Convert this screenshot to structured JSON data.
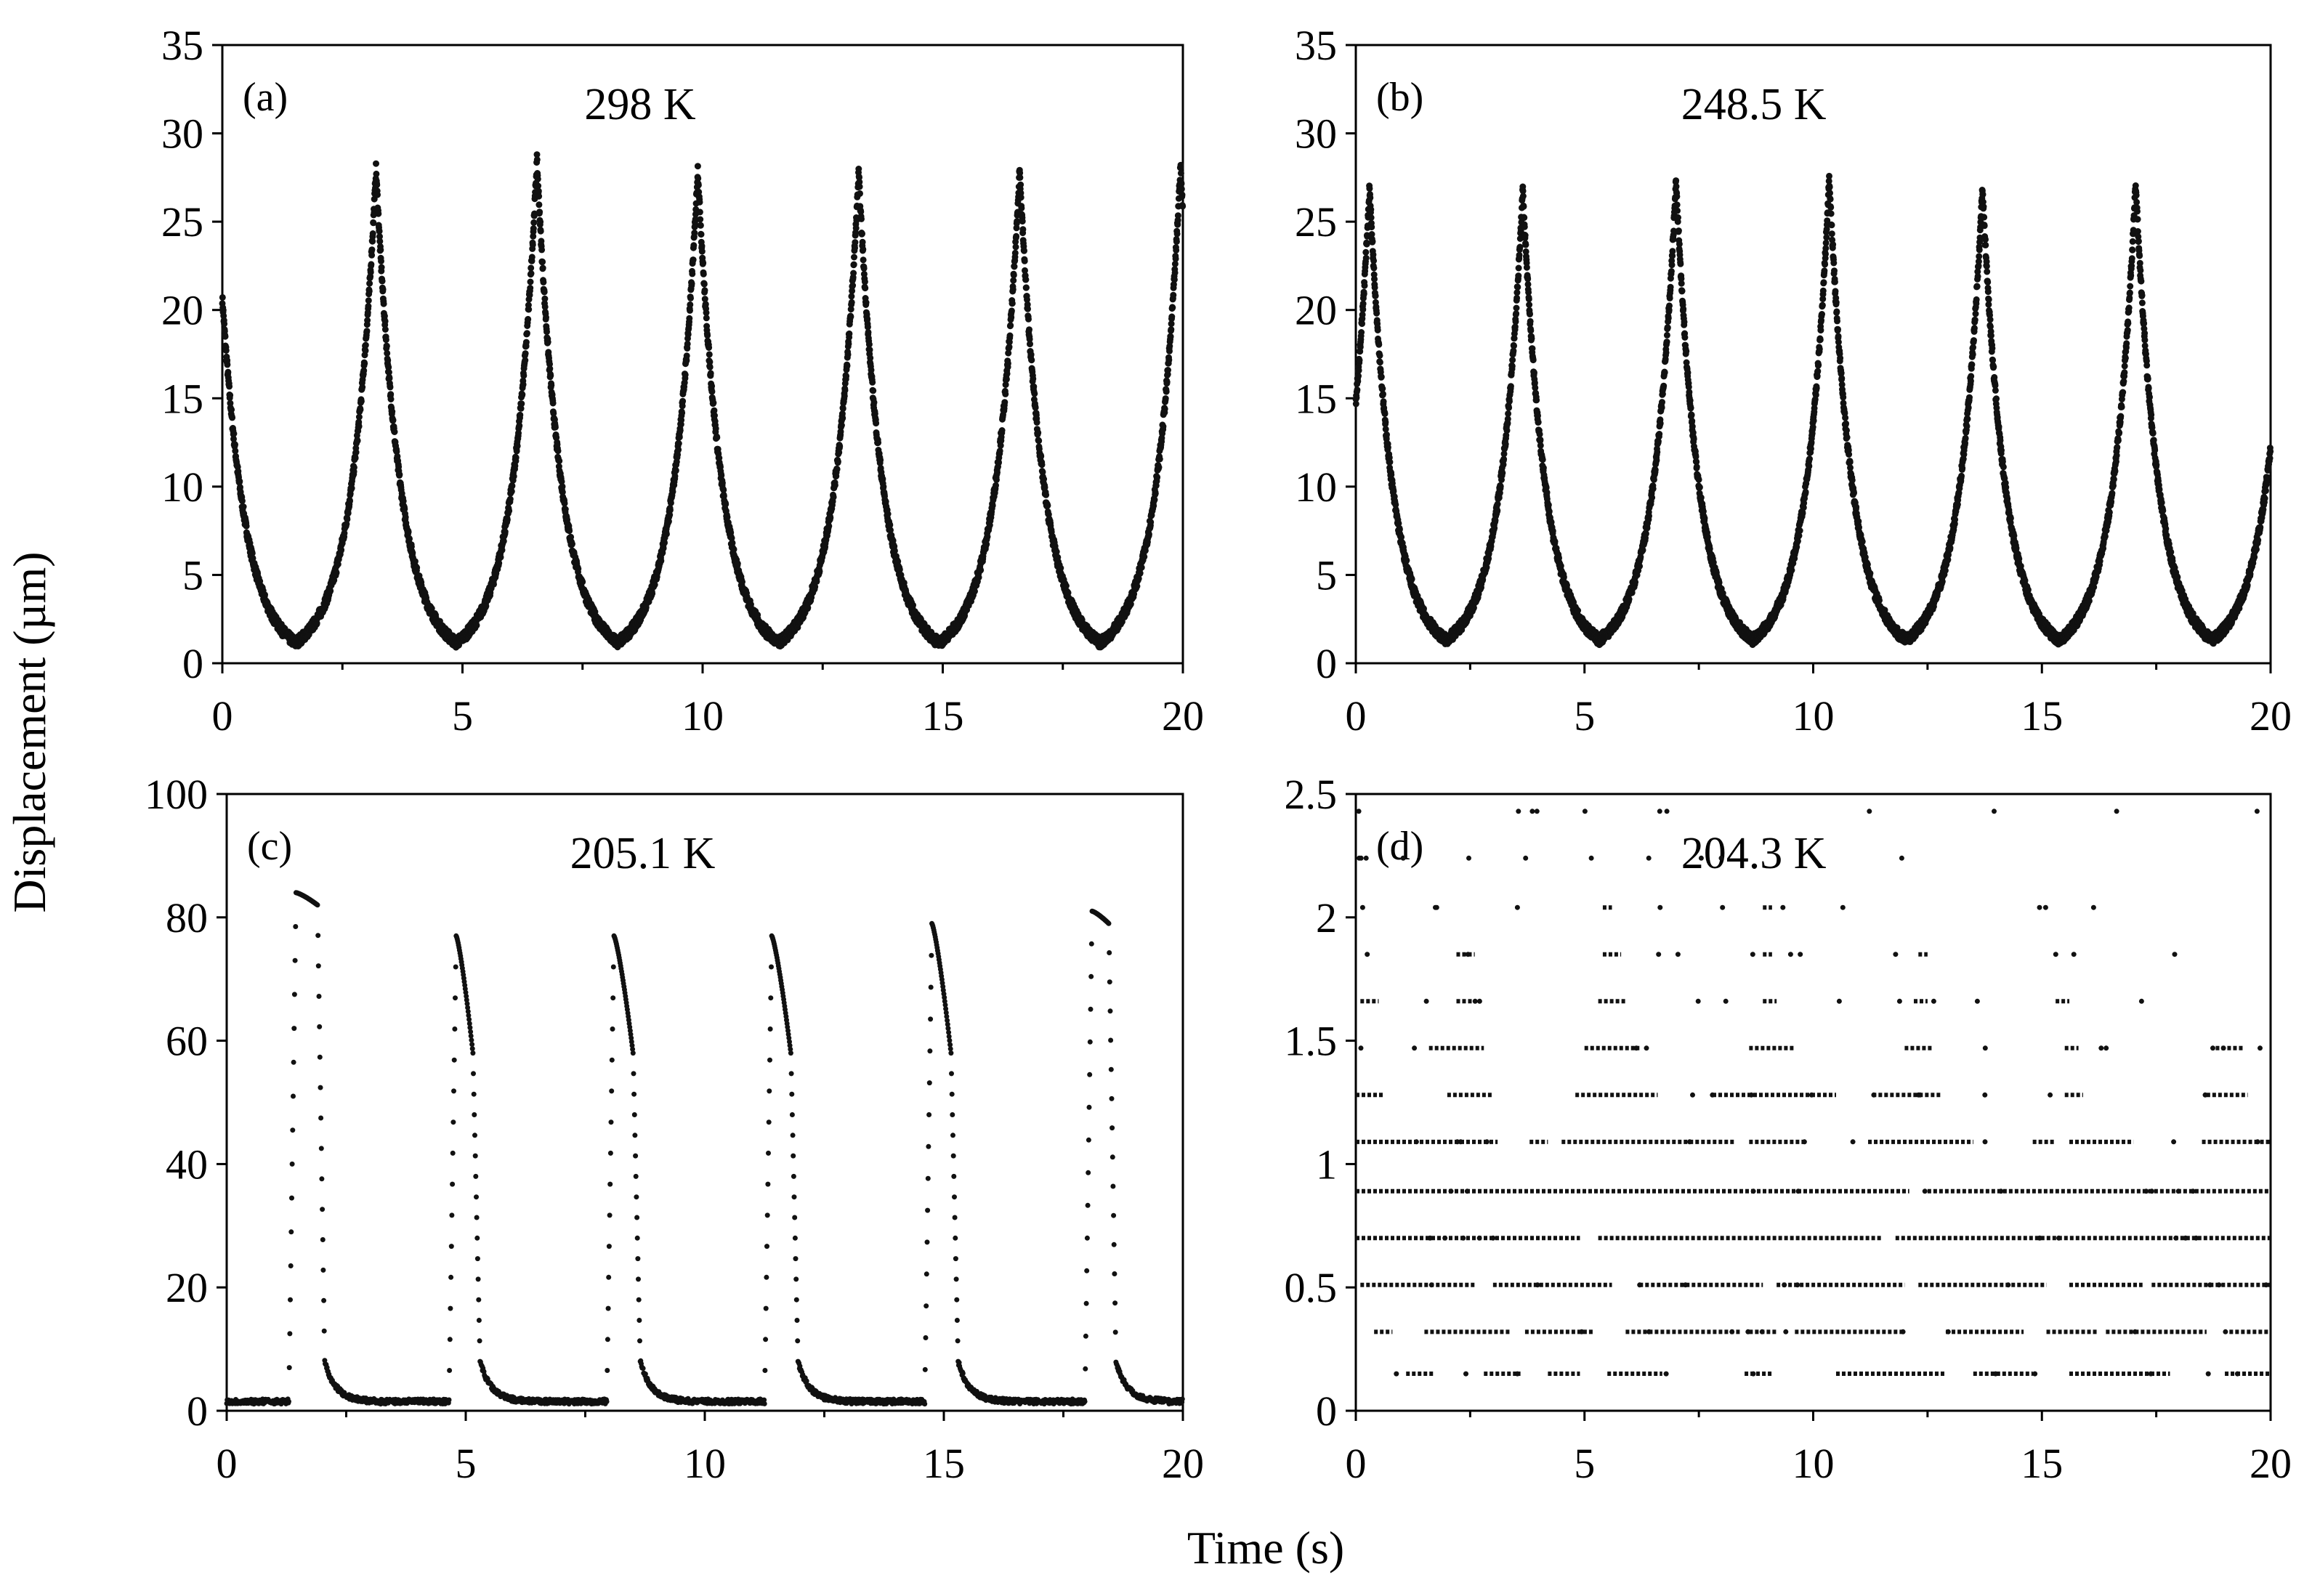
{
  "figure": {
    "xlabel": "Time (s)",
    "ylabel": "Displacement (µm)"
  },
  "chart_data": [
    {
      "type": "scatter",
      "panel": "(a)",
      "annotation": "298 K",
      "xlabel": "Time (s)",
      "ylabel": "Displacement (µm)",
      "xlim": [
        0,
        20
      ],
      "ylim": [
        0,
        35
      ],
      "x_ticks": [
        0,
        5,
        10,
        15,
        20
      ],
      "y_ticks": [
        0,
        5,
        10,
        15,
        20,
        25,
        30,
        35
      ],
      "signal": {
        "shape": "cusp",
        "period_s": 3.35,
        "first_peak_s": 3.2,
        "peak_um": 28.0,
        "peak_heights_um": [
          28.0,
          28.5,
          28.0,
          27.8,
          28.0,
          28.2
        ],
        "trough_um": 0.3,
        "t_end_s": 20
      }
    },
    {
      "type": "scatter",
      "panel": "(b)",
      "annotation": "248.5 K",
      "xlabel": "Time (s)",
      "ylabel": "Displacement (µm)",
      "xlim": [
        0,
        20
      ],
      "ylim": [
        0,
        35
      ],
      "x_ticks": [
        0,
        5,
        10,
        15,
        20
      ],
      "y_ticks": [
        0,
        5,
        10,
        15,
        20,
        25,
        30,
        35
      ],
      "signal": {
        "shape": "cusp",
        "period_s": 3.35,
        "first_peak_s": 0.3,
        "peak_um": 27.0,
        "peak_heights_um": [
          27.0,
          26.8,
          27.3,
          27.5,
          27.0,
          27.2
        ],
        "trough_um": 0.5,
        "t_end_s": 20
      }
    },
    {
      "type": "scatter",
      "panel": "(c)",
      "annotation": "205.1 K",
      "xlabel": "Time (s)",
      "ylabel": "Displacement (µm)",
      "xlim": [
        0,
        20
      ],
      "ylim": [
        0,
        100
      ],
      "x_ticks": [
        0,
        5,
        10,
        15,
        20
      ],
      "y_ticks": [
        0,
        20,
        40,
        60,
        80,
        100
      ],
      "signal": {
        "shape": "pulse",
        "baseline_um": 1.5,
        "pulses": [
          {
            "rise_s": 1.3,
            "peak_um": 84,
            "fall_s": 1.95,
            "knee_um": 82
          },
          {
            "rise_s": 4.65,
            "peak_um": 77,
            "fall_s": 5.2,
            "knee_um": 58
          },
          {
            "rise_s": 7.95,
            "peak_um": 77,
            "fall_s": 8.55,
            "knee_um": 58
          },
          {
            "rise_s": 11.25,
            "peak_um": 77,
            "fall_s": 11.85,
            "knee_um": 58
          },
          {
            "rise_s": 14.6,
            "peak_um": 79,
            "fall_s": 15.2,
            "knee_um": 58
          },
          {
            "rise_s": 17.95,
            "peak_um": 81,
            "fall_s": 18.5,
            "knee_um": 79
          }
        ],
        "t_end_s": 20
      }
    },
    {
      "type": "scatter",
      "panel": "(d)",
      "annotation": "204.3 K",
      "xlabel": "Time (s)",
      "ylabel": "Displacement (µm)",
      "xlim": [
        0,
        20
      ],
      "ylim": [
        0,
        2.5
      ],
      "x_ticks": [
        0,
        5,
        10,
        15,
        20
      ],
      "y_ticks": [
        0,
        0.5,
        1,
        1.5,
        2,
        2.5
      ],
      "y_tick_labels": [
        "0",
        "0.5",
        "1",
        "1.5",
        "2",
        "2.5"
      ],
      "levels": [
        {
          "y": 0.15,
          "segments": [
            [
              1.1,
              1.7
            ],
            [
              2.8,
              3.6
            ],
            [
              4.2,
              4.9
            ],
            [
              5.5,
              6.7
            ],
            [
              8.5,
              9.1
            ],
            [
              10.5,
              12.9
            ],
            [
              13.5,
              14.8
            ],
            [
              15.6,
              17.8
            ],
            [
              19.0,
              20
            ]
          ]
        },
        {
          "y": 0.32,
          "segments": [
            [
              0.4,
              0.8
            ],
            [
              1.5,
              3.4
            ],
            [
              3.7,
              5.2
            ],
            [
              5.9,
              8.4
            ],
            [
              8.6,
              9.2
            ],
            [
              9.6,
              12.0
            ],
            [
              12.9,
              14.6
            ],
            [
              15.1,
              16.2
            ],
            [
              16.4,
              18.6
            ],
            [
              19.1,
              20
            ]
          ]
        },
        {
          "y": 0.51,
          "segments": [
            [
              0.1,
              2.6
            ],
            [
              3.0,
              5.6
            ],
            [
              6.2,
              8.9
            ],
            [
              9.2,
              12.0
            ],
            [
              12.3,
              15.1
            ],
            [
              15.6,
              17.2
            ],
            [
              17.4,
              20
            ]
          ]
        },
        {
          "y": 0.7,
          "segments": [
            [
              0.0,
              4.9
            ],
            [
              5.3,
              11.5
            ],
            [
              11.8,
              20
            ]
          ]
        },
        {
          "y": 0.89,
          "segments": [
            [
              0.0,
              12.1
            ],
            [
              12.5,
              20
            ]
          ]
        },
        {
          "y": 1.09,
          "segments": [
            [
              0.0,
              3.1
            ],
            [
              3.8,
              4.2
            ],
            [
              4.5,
              8.3
            ],
            [
              8.6,
              9.8
            ],
            [
              11.2,
              13.5
            ],
            [
              14.8,
              15.3
            ],
            [
              15.6,
              17.0
            ],
            [
              18.5,
              20
            ]
          ]
        },
        {
          "y": 1.28,
          "segments": [
            [
              0.0,
              0.6
            ],
            [
              2.0,
              3.0
            ],
            [
              4.8,
              6.6
            ],
            [
              7.8,
              10.5
            ],
            [
              11.3,
              12.8
            ],
            [
              15.5,
              15.9
            ],
            [
              18.6,
              19.5
            ]
          ]
        },
        {
          "y": 1.47,
          "segments": [
            [
              1.6,
              2.8
            ],
            [
              5.0,
              6.2
            ],
            [
              8.6,
              9.6
            ],
            [
              12.0,
              12.6
            ],
            [
              15.5,
              15.8
            ],
            [
              18.8,
              19.4
            ]
          ]
        },
        {
          "y": 1.66,
          "segments": [
            [
              0.1,
              0.5
            ],
            [
              2.2,
              2.6
            ],
            [
              5.3,
              5.9
            ],
            [
              8.9,
              9.2
            ],
            [
              12.2,
              12.5
            ],
            [
              15.3,
              15.6
            ]
          ]
        },
        {
          "y": 1.85,
          "segments": [
            [
              0.2,
              0.3
            ],
            [
              2.2,
              2.6
            ],
            [
              5.4,
              5.8
            ],
            [
              8.9,
              9.1
            ],
            [
              12.3,
              12.5
            ]
          ]
        },
        {
          "y": 2.04,
          "segments": [
            [
              0.1,
              0.2
            ],
            [
              5.4,
              5.6
            ],
            [
              8.9,
              9.1
            ]
          ]
        },
        {
          "y": 2.24,
          "segments": [
            [
              0.05,
              0.1
            ]
          ]
        },
        {
          "y": 2.43,
          "segments": [
            [
              0.05,
              0.08
            ]
          ]
        }
      ]
    }
  ]
}
